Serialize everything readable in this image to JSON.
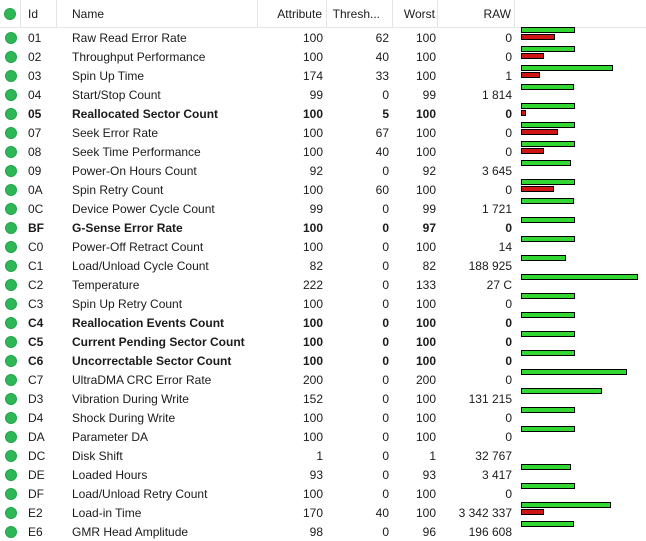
{
  "header": {
    "columns": {
      "id": "Id",
      "name": "Name",
      "attribute": "Attribute",
      "threshold": "Thresh...",
      "worst": "Worst",
      "raw": "RAW"
    }
  },
  "colors": {
    "status_ok_dot": "#2db757",
    "status_ok_dot_border": "#26a34c",
    "bar_value_green": "#32d732",
    "bar_threshold_red": "#ce1414",
    "bar_border": "#000000",
    "grid_line": "#e4e4e4"
  },
  "rows": [
    {
      "id": "01",
      "name": "Raw Read Error Rate",
      "attribute": 100,
      "threshold": 62,
      "worst": 100,
      "raw": "0",
      "bold": false,
      "status": "ok"
    },
    {
      "id": "02",
      "name": "Throughput Performance",
      "attribute": 100,
      "threshold": 40,
      "worst": 100,
      "raw": "0",
      "bold": false,
      "status": "ok"
    },
    {
      "id": "03",
      "name": "Spin Up Time",
      "attribute": 174,
      "threshold": 33,
      "worst": 100,
      "raw": "1",
      "bold": false,
      "status": "ok"
    },
    {
      "id": "04",
      "name": "Start/Stop Count",
      "attribute": 99,
      "threshold": 0,
      "worst": 99,
      "raw": "1 814",
      "bold": false,
      "status": "ok"
    },
    {
      "id": "05",
      "name": "Reallocated Sector Count",
      "attribute": 100,
      "threshold": 5,
      "worst": 100,
      "raw": "0",
      "bold": true,
      "status": "ok"
    },
    {
      "id": "07",
      "name": "Seek Error Rate",
      "attribute": 100,
      "threshold": 67,
      "worst": 100,
      "raw": "0",
      "bold": false,
      "status": "ok"
    },
    {
      "id": "08",
      "name": "Seek Time Performance",
      "attribute": 100,
      "threshold": 40,
      "worst": 100,
      "raw": "0",
      "bold": false,
      "status": "ok"
    },
    {
      "id": "09",
      "name": "Power-On Hours Count",
      "attribute": 92,
      "threshold": 0,
      "worst": 92,
      "raw": "3 645",
      "bold": false,
      "status": "ok"
    },
    {
      "id": "0A",
      "name": "Spin Retry Count",
      "attribute": 100,
      "threshold": 60,
      "worst": 100,
      "raw": "0",
      "bold": false,
      "status": "ok"
    },
    {
      "id": "0C",
      "name": "Device Power Cycle Count",
      "attribute": 99,
      "threshold": 0,
      "worst": 99,
      "raw": "1 721",
      "bold": false,
      "status": "ok"
    },
    {
      "id": "BF",
      "name": "G-Sense Error Rate",
      "attribute": 100,
      "threshold": 0,
      "worst": 97,
      "raw": "0",
      "bold": true,
      "status": "ok"
    },
    {
      "id": "C0",
      "name": "Power-Off Retract Count",
      "attribute": 100,
      "threshold": 0,
      "worst": 100,
      "raw": "14",
      "bold": false,
      "status": "ok"
    },
    {
      "id": "C1",
      "name": "Load/Unload Cycle Count",
      "attribute": 82,
      "threshold": 0,
      "worst": 82,
      "raw": "188 925",
      "bold": false,
      "status": "ok"
    },
    {
      "id": "C2",
      "name": "Temperature",
      "attribute": 222,
      "threshold": 0,
      "worst": 133,
      "raw": "27 C",
      "bold": false,
      "status": "ok"
    },
    {
      "id": "C3",
      "name": "Spin Up Retry Count",
      "attribute": 100,
      "threshold": 0,
      "worst": 100,
      "raw": "0",
      "bold": false,
      "status": "ok"
    },
    {
      "id": "C4",
      "name": "Reallocation Events Count",
      "attribute": 100,
      "threshold": 0,
      "worst": 100,
      "raw": "0",
      "bold": true,
      "status": "ok"
    },
    {
      "id": "C5",
      "name": "Current Pending Sector Count",
      "attribute": 100,
      "threshold": 0,
      "worst": 100,
      "raw": "0",
      "bold": true,
      "status": "ok"
    },
    {
      "id": "C6",
      "name": "Uncorrectable Sector Count",
      "attribute": 100,
      "threshold": 0,
      "worst": 100,
      "raw": "0",
      "bold": true,
      "status": "ok"
    },
    {
      "id": "C7",
      "name": "UltraDMA CRC Error Rate",
      "attribute": 200,
      "threshold": 0,
      "worst": 200,
      "raw": "0",
      "bold": false,
      "status": "ok"
    },
    {
      "id": "D3",
      "name": "Vibration During Write",
      "attribute": 152,
      "threshold": 0,
      "worst": 100,
      "raw": "131 215",
      "bold": false,
      "status": "ok"
    },
    {
      "id": "D4",
      "name": "Shock During Write",
      "attribute": 100,
      "threshold": 0,
      "worst": 100,
      "raw": "0",
      "bold": false,
      "status": "ok"
    },
    {
      "id": "DA",
      "name": "Parameter DA",
      "attribute": 100,
      "threshold": 0,
      "worst": 100,
      "raw": "0",
      "bold": false,
      "status": "ok"
    },
    {
      "id": "DC",
      "name": "Disk Shift",
      "attribute": 1,
      "threshold": 0,
      "worst": 1,
      "raw": "32 767",
      "bold": false,
      "status": "ok"
    },
    {
      "id": "DE",
      "name": "Loaded Hours",
      "attribute": 93,
      "threshold": 0,
      "worst": 93,
      "raw": "3 417",
      "bold": false,
      "status": "ok"
    },
    {
      "id": "DF",
      "name": "Load/Unload Retry Count",
      "attribute": 100,
      "threshold": 0,
      "worst": 100,
      "raw": "0",
      "bold": false,
      "status": "ok"
    },
    {
      "id": "E2",
      "name": "Load-in Time",
      "attribute": 170,
      "threshold": 40,
      "worst": 100,
      "raw": "3 342 337",
      "bold": false,
      "status": "ok"
    },
    {
      "id": "E6",
      "name": "GMR Head Amplitude",
      "attribute": 98,
      "threshold": 0,
      "worst": 96,
      "raw": "196 608",
      "bold": false,
      "status": "ok"
    }
  ]
}
